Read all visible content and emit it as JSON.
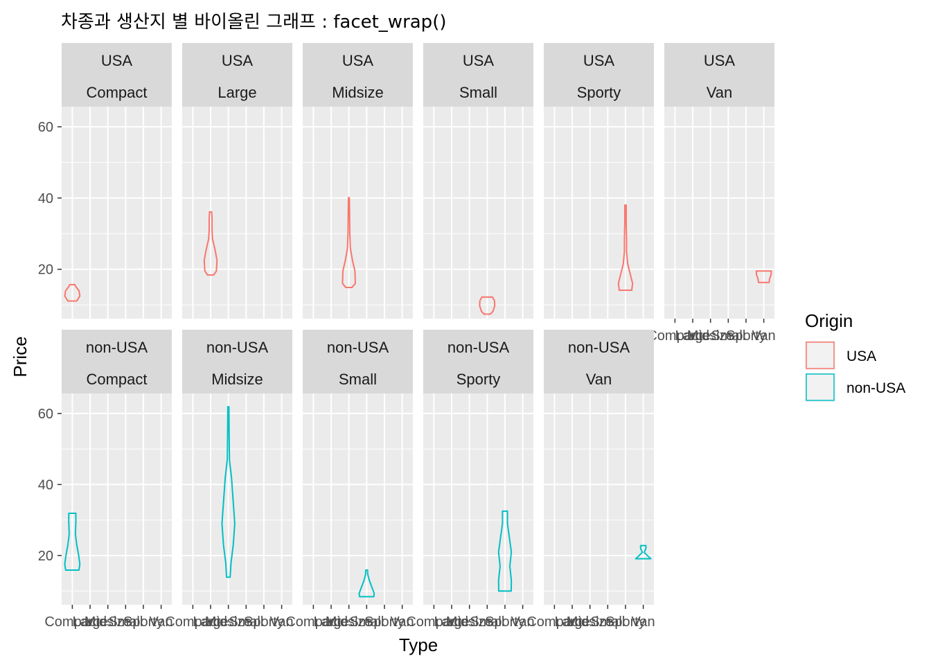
{
  "chart_data": {
    "type": "violin",
    "title": "차종과 생산지 별 바이올린 그래프 : facet_wrap()",
    "xlabel": "Type",
    "ylabel": "Price",
    "categories": [
      "Compact",
      "Large",
      "Midsize",
      "Small",
      "Sporty",
      "Van"
    ],
    "ylim": [
      6.14,
      65.64
    ],
    "yticks": [
      20,
      40,
      60
    ],
    "grid": true,
    "facet_ncol": 6,
    "legend": {
      "title": "Origin",
      "position": "right",
      "entries": [
        {
          "name": "USA",
          "color": "#F8766D"
        },
        {
          "name": "non-USA",
          "color": "#00BFC4"
        }
      ]
    },
    "panels": [
      {
        "origin": "USA",
        "type": "Compact",
        "color": "#F8766D",
        "show_x_axis": false,
        "violin": {
          "y": [
            11.1,
            12.5,
            14.0,
            15.1,
            15.7
          ],
          "w": [
            0.5,
            0.85,
            0.75,
            0.4,
            0.28
          ]
        }
      },
      {
        "origin": "USA",
        "type": "Large",
        "color": "#F8766D",
        "show_x_axis": false,
        "violin": {
          "y": [
            18.4,
            19.5,
            22.5,
            25.5,
            28.5,
            31,
            34,
            36.1
          ],
          "w": [
            0.35,
            0.65,
            0.72,
            0.5,
            0.22,
            0.16,
            0.16,
            0.12
          ]
        }
      },
      {
        "origin": "USA",
        "type": "Midsize",
        "color": "#F8766D",
        "show_x_axis": false,
        "violin": {
          "y": [
            14.9,
            16,
            19.5,
            22.5,
            26,
            30,
            35,
            40.1
          ],
          "w": [
            0.35,
            0.72,
            0.68,
            0.4,
            0.16,
            0.1,
            0.08,
            0.05
          ]
        }
      },
      {
        "origin": "USA",
        "type": "Small",
        "color": "#F8766D",
        "show_x_axis": false,
        "violin": {
          "y": [
            7.4,
            8.2,
            9.8,
            11.2,
            12.2
          ],
          "w": [
            0.35,
            0.65,
            0.85,
            0.82,
            0.6
          ]
        }
      },
      {
        "origin": "USA",
        "type": "Sporty",
        "color": "#F8766D",
        "show_x_axis": false,
        "violin": {
          "y": [
            14.1,
            16,
            18.5,
            21.5,
            25,
            28.5,
            33,
            38.0
          ],
          "w": [
            0.7,
            0.8,
            0.55,
            0.25,
            0.12,
            0.12,
            0.08,
            0.08
          ]
        }
      },
      {
        "origin": "USA",
        "type": "Van",
        "color": "#F8766D",
        "show_x_axis": true,
        "violin": {
          "y": [
            16.3,
            17.3,
            18.5,
            19.5
          ],
          "w": [
            0.6,
            0.65,
            0.82,
            0.85
          ]
        }
      },
      {
        "origin": "non-USA",
        "type": "Compact",
        "color": "#00BFC4",
        "show_x_axis": true,
        "violin": {
          "y": [
            15.9,
            17.5,
            20,
            23,
            26,
            29.5,
            31.9
          ],
          "w": [
            0.75,
            0.85,
            0.72,
            0.5,
            0.35,
            0.4,
            0.4
          ]
        }
      },
      {
        "origin": "non-USA",
        "type": "Midsize",
        "color": "#00BFC4",
        "show_x_axis": true,
        "violin": {
          "y": [
            13.9,
            18,
            23,
            29,
            35,
            42,
            47,
            55,
            61.9
          ],
          "w": [
            0.2,
            0.3,
            0.55,
            0.72,
            0.55,
            0.35,
            0.12,
            0.08,
            0.06
          ]
        }
      },
      {
        "origin": "non-USA",
        "type": "Small",
        "color": "#00BFC4",
        "show_x_axis": true,
        "violin": {
          "y": [
            8.4,
            9.3,
            11,
            13,
            14.7,
            15.9
          ],
          "w": [
            0.8,
            0.85,
            0.6,
            0.3,
            0.12,
            0.1
          ]
        }
      },
      {
        "origin": "non-USA",
        "type": "Sporty",
        "color": "#00BFC4",
        "show_x_axis": true,
        "violin": {
          "y": [
            10,
            13,
            17,
            21,
            25,
            29,
            32.5
          ],
          "w": [
            0.7,
            0.72,
            0.55,
            0.72,
            0.5,
            0.28,
            0.28
          ]
        }
      },
      {
        "origin": "non-USA",
        "type": "Van",
        "color": "#00BFC4",
        "show_x_axis": true,
        "violin": {
          "y": [
            19.1,
            19.9,
            20.9,
            22.0,
            22.8
          ],
          "w": [
            0.85,
            0.5,
            0.1,
            0.3,
            0.3
          ]
        }
      }
    ]
  }
}
